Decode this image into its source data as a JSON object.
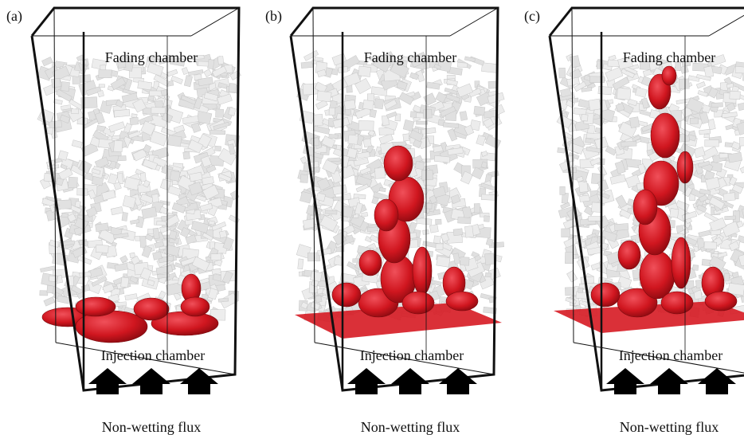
{
  "panels": [
    {
      "label": "(a)",
      "top_label": "Fading chamber",
      "bottom_label": "Injection chamber",
      "flux_label": "Non-wetting flux"
    },
    {
      "label": "(b)",
      "top_label": "Fading chamber",
      "bottom_label": "Injection chamber",
      "flux_label": "Non-wetting flux"
    },
    {
      "label": "(c)",
      "top_label": "Fading chamber",
      "bottom_label": "Injection chamber",
      "flux_label": "Non-wetting flux"
    }
  ]
}
